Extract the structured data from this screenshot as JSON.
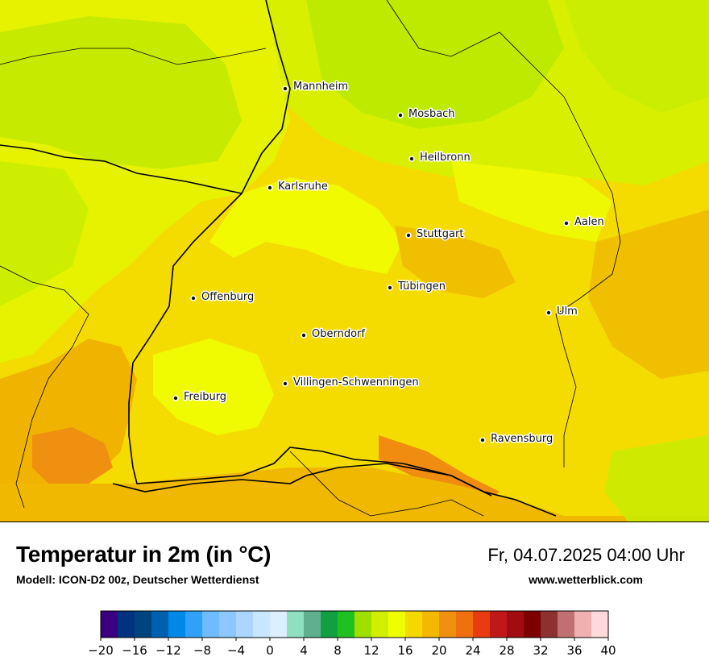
{
  "map": {
    "cities": [
      {
        "name": "Mannheim"
      },
      {
        "name": "Mosbach"
      },
      {
        "name": "Heilbronn"
      },
      {
        "name": "Karlsruhe"
      },
      {
        "name": "Aalen"
      },
      {
        "name": "Stuttgart"
      },
      {
        "name": "Tübingen"
      },
      {
        "name": "Offenburg"
      },
      {
        "name": "Ulm"
      },
      {
        "name": "Oberndorf"
      },
      {
        "name": "Villingen-Schwenningen"
      },
      {
        "name": "Freiburg"
      },
      {
        "name": "Ravensburg"
      }
    ]
  },
  "footer": {
    "title": "Temperatur in 2m (in °C)",
    "subtitle": "Modell: ICON-D2 00z, Deutscher Wetterdienst",
    "datetime": "Fr, 04.07.2025 04:00 Uhr",
    "website": "www.wetterblick.com"
  },
  "legend": {
    "ticks": [
      "−20",
      "−16",
      "−12",
      "−8",
      "−4",
      "0",
      "4",
      "8",
      "12",
      "16",
      "20",
      "24",
      "28",
      "32",
      "36",
      "40"
    ],
    "colors": [
      "#3a007f",
      "#00337f",
      "#00447f",
      "#0060b0",
      "#0088e8",
      "#30a0f8",
      "#70baff",
      "#8cc8ff",
      "#aad6ff",
      "#c8e6ff",
      "#dcefff",
      "#8ee0c0",
      "#60b090",
      "#10a040",
      "#20c020",
      "#a0e000",
      "#d0f000",
      "#f0ff00",
      "#f4d800",
      "#f4b800",
      "#f09010",
      "#f07010",
      "#e83c10",
      "#c01818",
      "#a00c10",
      "#7c0000",
      "#8c3030",
      "#c07070",
      "#f0b0b0",
      "#ffd8dc"
    ]
  }
}
